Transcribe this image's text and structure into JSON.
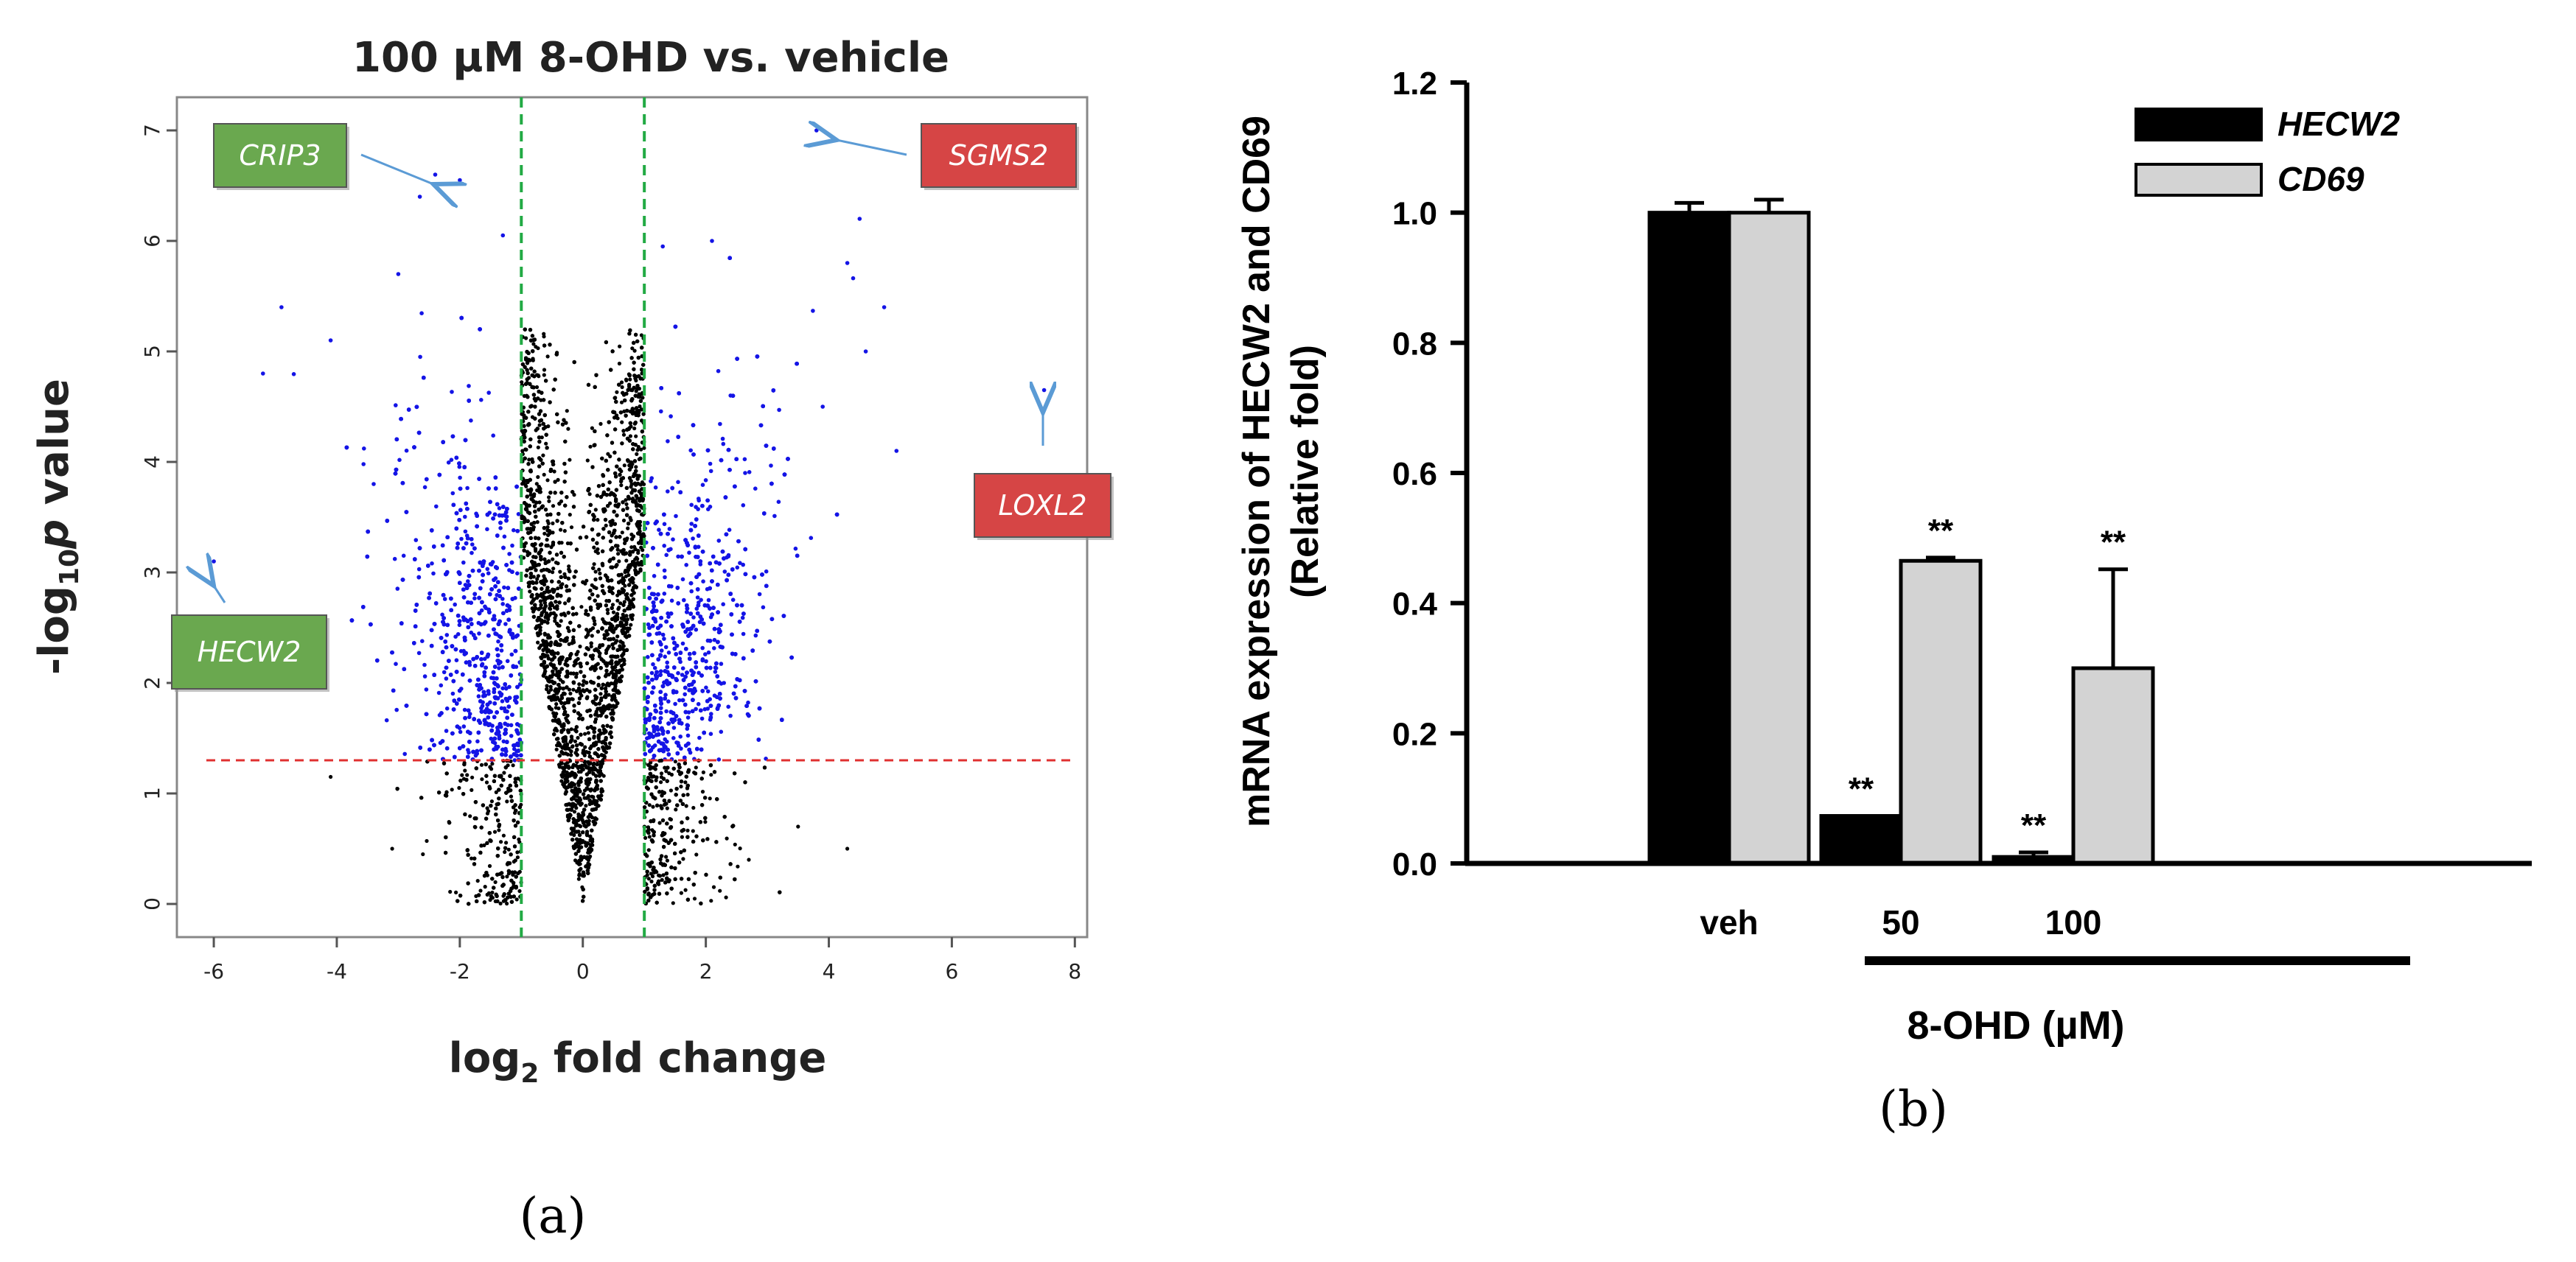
{
  "chart_data": [
    {
      "panel": "(a)",
      "type": "scatter",
      "title": "100 µM 8-OHD vs. vehicle",
      "xlabel": "log",
      "xlabel_sub": "2",
      "xlabel_rest": " fold change",
      "ylabel_pre": "-log",
      "ylabel_sub": "10",
      "ylabel_italic": "p",
      "ylabel_rest": " value",
      "xlim": [
        -6.6,
        8.2
      ],
      "ylim": [
        -0.3,
        7.3
      ],
      "xticks": [
        "-6",
        "-4",
        "-2",
        "0",
        "2",
        "4",
        "6",
        "8"
      ],
      "yticks": [
        "0",
        "1",
        "2",
        "3",
        "4",
        "5",
        "6",
        "7"
      ],
      "fold_change_cutoffs": [
        -1,
        1
      ],
      "p_value_cutoff": 1.3,
      "colors": {
        "significant": "#1414e6",
        "not_significant": "#000000",
        "fc_line": "#22aa44",
        "p_line": "#e03030",
        "arrow": "#5b9bd5",
        "down_box": "#6aa84f",
        "up_box": "#d64545"
      },
      "labeled_genes": [
        {
          "name": "CRIP3",
          "x": -2.5,
          "y": 6.6,
          "direction": "down"
        },
        {
          "name": "SGMS2",
          "x": 3.8,
          "y": 7.0,
          "direction": "up"
        },
        {
          "name": "LOXL2",
          "x": 7.5,
          "y": 4.6,
          "direction": "up"
        },
        {
          "name": "HECW2",
          "x": -6.0,
          "y": 3.0,
          "direction": "down"
        }
      ]
    },
    {
      "panel": "(b)",
      "type": "bar",
      "ylabel_line1": "mRNA expression of HECW2 and CD69",
      "ylabel_line2": "(Relative fold)",
      "xlabel": "8-OHD (µM)",
      "categories": [
        "veh",
        "50",
        "100"
      ],
      "ylim": [
        0,
        1.2
      ],
      "yticks": [
        "0.0",
        "0.2",
        "0.4",
        "0.6",
        "0.8",
        "1.0",
        "1.2"
      ],
      "series": [
        {
          "name": "HECW2",
          "color": "#000000",
          "values": [
            1.0,
            0.073,
            0.01
          ],
          "errors": [
            0.015,
            0.0,
            0.007
          ],
          "significance": [
            "",
            "**",
            "**"
          ]
        },
        {
          "name": "CD69",
          "color": "#d3d3d3",
          "values": [
            1.0,
            0.465,
            0.3
          ],
          "errors": [
            0.02,
            0.005,
            0.152
          ],
          "significance": [
            "",
            "**",
            "**"
          ]
        }
      ]
    }
  ]
}
